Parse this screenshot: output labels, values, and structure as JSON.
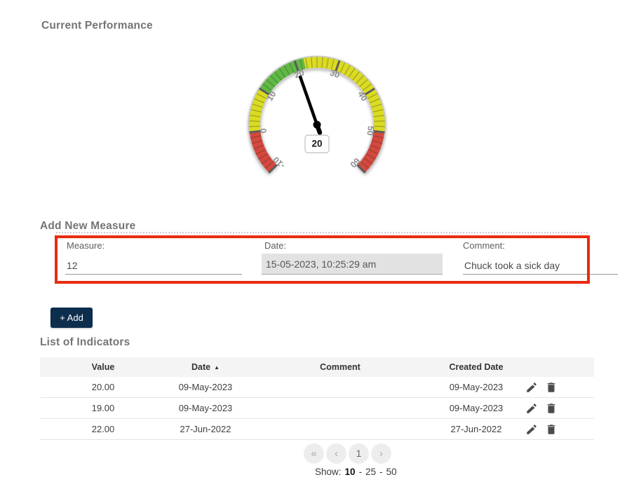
{
  "sections": {
    "performance": {
      "title": "Current Performance"
    },
    "add_measure": {
      "title": "Add New Measure",
      "fields": {
        "measure": {
          "label": "Measure:",
          "value": "12"
        },
        "date": {
          "label": "Date:",
          "value": "15-05-2023, 10:25:29 am"
        },
        "comment": {
          "label": "Comment:",
          "value": "Chuck took a sick day"
        }
      },
      "add_button_label": "+ Add",
      "highlight_border_color": "#e92b0f",
      "add_button_color": "#0d2d4c"
    },
    "indicators": {
      "title": "List of Indicators",
      "table": {
        "headers": {
          "value": "Value",
          "date": "Date",
          "comment": "Comment",
          "created": "Created Date"
        },
        "sort_column": "Date",
        "sort_direction": "asc",
        "rows": [
          {
            "value": "20.00",
            "date": "09-May-2023",
            "comment": "",
            "created": "09-May-2023"
          },
          {
            "value": "19.00",
            "date": "09-May-2023",
            "comment": "",
            "created": "09-May-2023"
          },
          {
            "value": "22.00",
            "date": "27-Jun-2022",
            "comment": "",
            "created": "27-Jun-2022"
          }
        ]
      },
      "pagination": {
        "page": "1",
        "show_label": "Show:",
        "options": [
          "10",
          "25",
          "50"
        ],
        "active_option": "10",
        "separator": "-"
      }
    }
  },
  "icons": {
    "sort_asc": "▲",
    "first_page": "«",
    "prev_page": "‹",
    "next_page": "›"
  },
  "chart_data": {
    "type": "gauge",
    "title": "Current Performance",
    "min": -10,
    "max": 60,
    "value": 20,
    "value_display": "20",
    "start_angle": -135,
    "end_angle": 135,
    "major_ticks": [
      -10,
      0,
      10,
      20,
      30,
      40,
      50,
      60
    ],
    "minor_tick_step": 1.25,
    "bands": [
      {
        "from": -10,
        "to": 0,
        "color": "#d4483d"
      },
      {
        "from": 0,
        "to": 10,
        "color": "#dbdb22"
      },
      {
        "from": 10,
        "to": 22,
        "color": "#5fb944"
      },
      {
        "from": 22,
        "to": 50,
        "color": "#dbdb22"
      },
      {
        "from": 50,
        "to": 60,
        "color": "#d4483d"
      }
    ],
    "needle_color": "#000000",
    "tick_label_color": "#8d8d8d"
  }
}
